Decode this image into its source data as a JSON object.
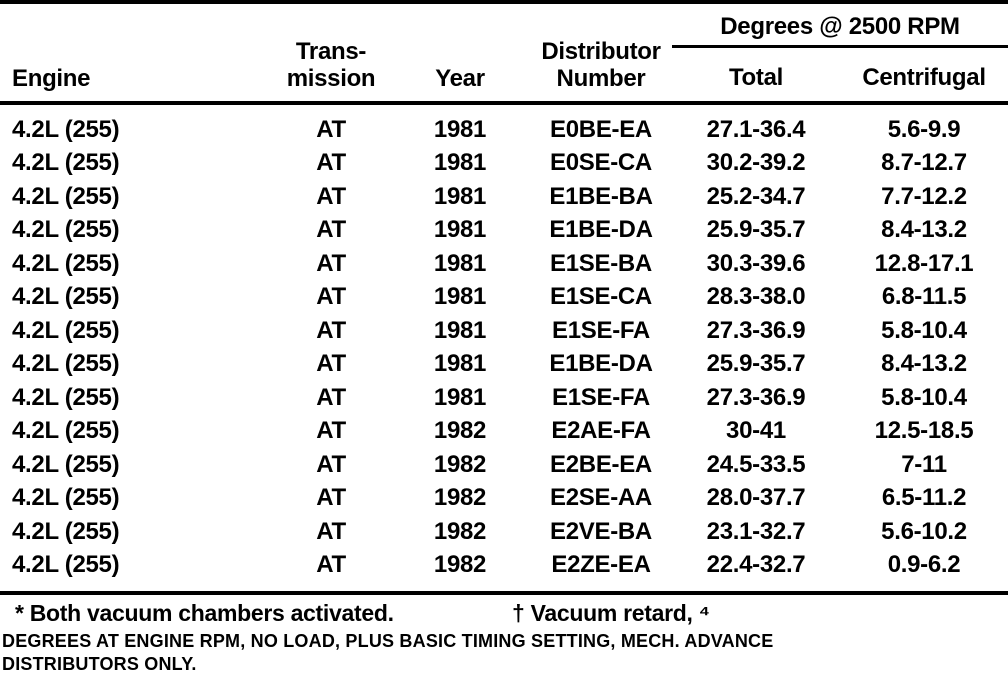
{
  "page": {
    "background_color": "#ffffff",
    "ink_color": "#000000"
  },
  "table": {
    "column_headers": {
      "engine": "Engine",
      "transmission": [
        "Trans-",
        "mission"
      ],
      "year": "Year",
      "distributor": [
        "Distributor",
        "Number"
      ],
      "degrees_group": "Degrees @ 2500 RPM",
      "total": "Total",
      "centrifugal": "Centrifugal"
    },
    "rows": [
      {
        "engine": "4.2L (255)",
        "transmission": "AT",
        "year": "1981",
        "distributor": "E0BE-EA",
        "total": "27.1-36.4",
        "centrifugal": "5.6-9.9"
      },
      {
        "engine": "4.2L (255)",
        "transmission": "AT",
        "year": "1981",
        "distributor": "E0SE-CA",
        "total": "30.2-39.2",
        "centrifugal": "8.7-12.7"
      },
      {
        "engine": "4.2L (255)",
        "transmission": "AT",
        "year": "1981",
        "distributor": "E1BE-BA",
        "total": "25.2-34.7",
        "centrifugal": "7.7-12.2"
      },
      {
        "engine": "4.2L (255)",
        "transmission": "AT",
        "year": "1981",
        "distributor": "E1BE-DA",
        "total": "25.9-35.7",
        "centrifugal": "8.4-13.2"
      },
      {
        "engine": "4.2L (255)",
        "transmission": "AT",
        "year": "1981",
        "distributor": "E1SE-BA",
        "total": "30.3-39.6",
        "centrifugal": "12.8-17.1"
      },
      {
        "engine": "4.2L (255)",
        "transmission": "AT",
        "year": "1981",
        "distributor": "E1SE-CA",
        "total": "28.3-38.0",
        "centrifugal": "6.8-11.5"
      },
      {
        "engine": "4.2L (255)",
        "transmission": "AT",
        "year": "1981",
        "distributor": "E1SE-FA",
        "total": "27.3-36.9",
        "centrifugal": "5.8-10.4"
      },
      {
        "engine": "4.2L (255)",
        "transmission": "AT",
        "year": "1981",
        "distributor": "E1BE-DA",
        "total": "25.9-35.7",
        "centrifugal": "8.4-13.2"
      },
      {
        "engine": "4.2L (255)",
        "transmission": "AT",
        "year": "1981",
        "distributor": "E1SE-FA",
        "total": "27.3-36.9",
        "centrifugal": "5.8-10.4"
      },
      {
        "engine": "4.2L (255)",
        "transmission": "AT",
        "year": "1982",
        "distributor": "E2AE-FA",
        "total": "30-41",
        "centrifugal": "12.5-18.5"
      },
      {
        "engine": "4.2L (255)",
        "transmission": "AT",
        "year": "1982",
        "distributor": "E2BE-EA",
        "total": "24.5-33.5",
        "centrifugal": "7-11"
      },
      {
        "engine": "4.2L (255)",
        "transmission": "AT",
        "year": "1982",
        "distributor": "E2SE-AA",
        "total": "28.0-37.7",
        "centrifugal": "6.5-11.2"
      },
      {
        "engine": "4.2L (255)",
        "transmission": "AT",
        "year": "1982",
        "distributor": "E2VE-BA",
        "total": "23.1-32.7",
        "centrifugal": "5.6-10.2"
      },
      {
        "engine": "4.2L (255)",
        "transmission": "AT",
        "year": "1982",
        "distributor": "E2ZE-EA",
        "total": "22.4-32.7",
        "centrifugal": "0.9-6.2"
      }
    ]
  },
  "footnotes": {
    "both_vacuum": "* Both vacuum chambers activated.",
    "vacuum_retard": "† Vacuum retard, ⁴"
  },
  "caption_lines": [
    "DEGREES AT ENGINE RPM, NO LOAD, PLUS BASIC TIMING SETTING, MECH. ADVANCE",
    "DISTRIBUTORS ONLY."
  ]
}
